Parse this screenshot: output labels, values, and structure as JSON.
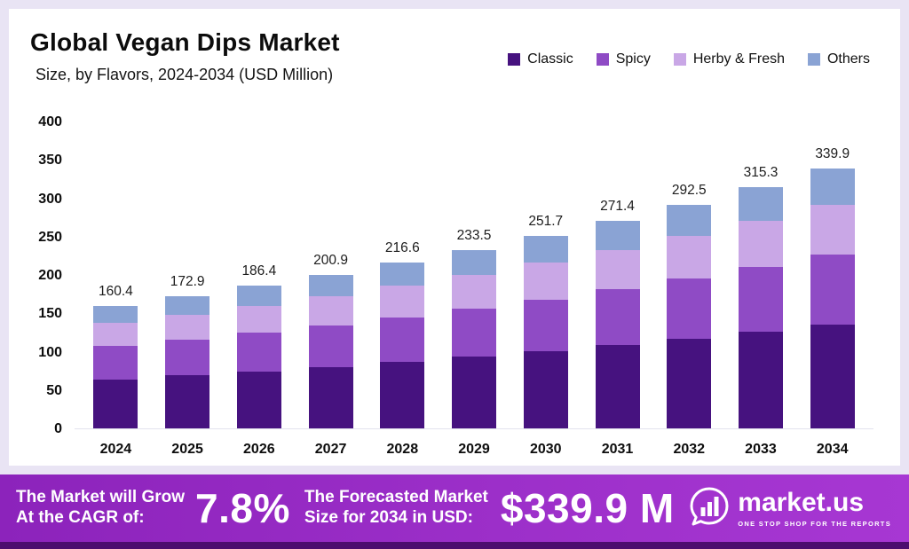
{
  "title": "Global Vegan Dips Market",
  "subtitle": "Size, by Flavors, 2024-2034 (USD Million)",
  "chart_data": {
    "type": "bar",
    "stacked": true,
    "categories": [
      "2024",
      "2025",
      "2026",
      "2027",
      "2028",
      "2029",
      "2030",
      "2031",
      "2032",
      "2033",
      "2034"
    ],
    "series": [
      {
        "name": "Classic",
        "color": "#46127f",
        "values": [
          64.2,
          69.2,
          74.6,
          80.4,
          86.6,
          93.4,
          100.7,
          108.6,
          117.0,
          126.1,
          136.0
        ]
      },
      {
        "name": "Spicy",
        "color": "#8f4bc5",
        "values": [
          43.3,
          46.7,
          50.3,
          54.2,
          58.5,
          63.0,
          68.0,
          73.3,
          79.0,
          85.1,
          91.8
        ]
      },
      {
        "name": "Herby & Fresh",
        "color": "#c9a7e6",
        "values": [
          30.5,
          32.9,
          35.4,
          38.2,
          41.2,
          44.4,
          47.8,
          51.6,
          55.6,
          59.9,
          64.6
        ]
      },
      {
        "name": "Others",
        "color": "#8aa3d4",
        "values": [
          22.4,
          24.1,
          26.1,
          28.1,
          30.3,
          32.7,
          35.2,
          37.9,
          40.9,
          44.2,
          47.5
        ]
      }
    ],
    "totals": [
      "160.4",
      "172.9",
      "186.4",
      "200.9",
      "216.6",
      "233.5",
      "251.7",
      "271.4",
      "292.5",
      "315.3",
      "339.9"
    ],
    "title": "Global Vegan Dips Market Size, by Flavors, 2024-2034 (USD Million)",
    "xlabel": "",
    "ylabel": "",
    "ylim": [
      0,
      400
    ],
    "yticks": [
      0,
      50,
      100,
      150,
      200,
      250,
      300,
      350,
      400
    ],
    "grid": false,
    "legend_position": "top-right",
    "legend": [
      "Classic",
      "Spicy",
      "Herby & Fresh",
      "Others"
    ]
  },
  "footer": {
    "cagr_label_line1": "The Market will Grow",
    "cagr_label_line2": "At the CAGR of:",
    "cagr_value": "7.8%",
    "forecast_label_line1": "The Forecasted Market",
    "forecast_label_line2": "Size for 2034 in USD:",
    "forecast_value": "$339.9 M",
    "brand_name": "market.us",
    "brand_tagline": "ONE STOP SHOP FOR THE REPORTS"
  },
  "colors": {
    "page_background": "#e9e4f4",
    "panel_background": "#ffffff",
    "footer_gradient_start": "#8c23bb",
    "footer_gradient_end": "#a737d3",
    "footer_bottom_strip": "#4c0d6e",
    "text": "#0d0d0d"
  }
}
